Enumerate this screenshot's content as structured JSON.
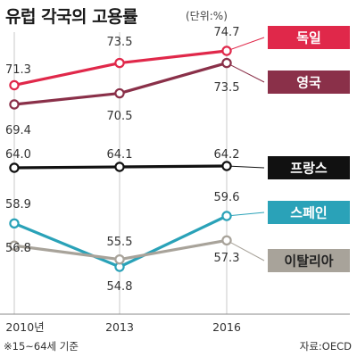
{
  "title": "유럽 각국의 고용률",
  "unit": "(단위:%)",
  "footnote": "※15~64세 기준",
  "source": "자료:OECD",
  "chart_data": {
    "type": "line",
    "x": [
      "2010년",
      "2013",
      "2016"
    ],
    "ylabel": "고용률 (%)",
    "series": [
      {
        "name": "독일",
        "values": [
          71.3,
          73.5,
          74.7
        ],
        "color": "#e0284a",
        "labels": [
          "71.3",
          "73.5",
          "74.7"
        ]
      },
      {
        "name": "영국",
        "values": [
          69.4,
          70.5,
          73.5
        ],
        "color": "#8a3049",
        "labels": [
          "69.4",
          "70.5",
          "73.5"
        ]
      },
      {
        "name": "프랑스",
        "values": [
          64.0,
          64.1,
          64.2
        ],
        "color": "#111111",
        "labels": [
          "64.0",
          "64.1",
          "64.2"
        ]
      },
      {
        "name": "스페인",
        "values": [
          58.9,
          54.8,
          59.6
        ],
        "color": "#2aa2b8",
        "labels": [
          "58.9",
          "54.8",
          "59.6"
        ]
      },
      {
        "name": "이탈리아",
        "values": [
          56.8,
          55.5,
          57.3
        ],
        "color": "#a8a39a",
        "labels": [
          "56.8",
          "55.5",
          "57.3"
        ]
      }
    ],
    "grid": "vertical lines at each year",
    "legend": "right, labels at line ends"
  }
}
